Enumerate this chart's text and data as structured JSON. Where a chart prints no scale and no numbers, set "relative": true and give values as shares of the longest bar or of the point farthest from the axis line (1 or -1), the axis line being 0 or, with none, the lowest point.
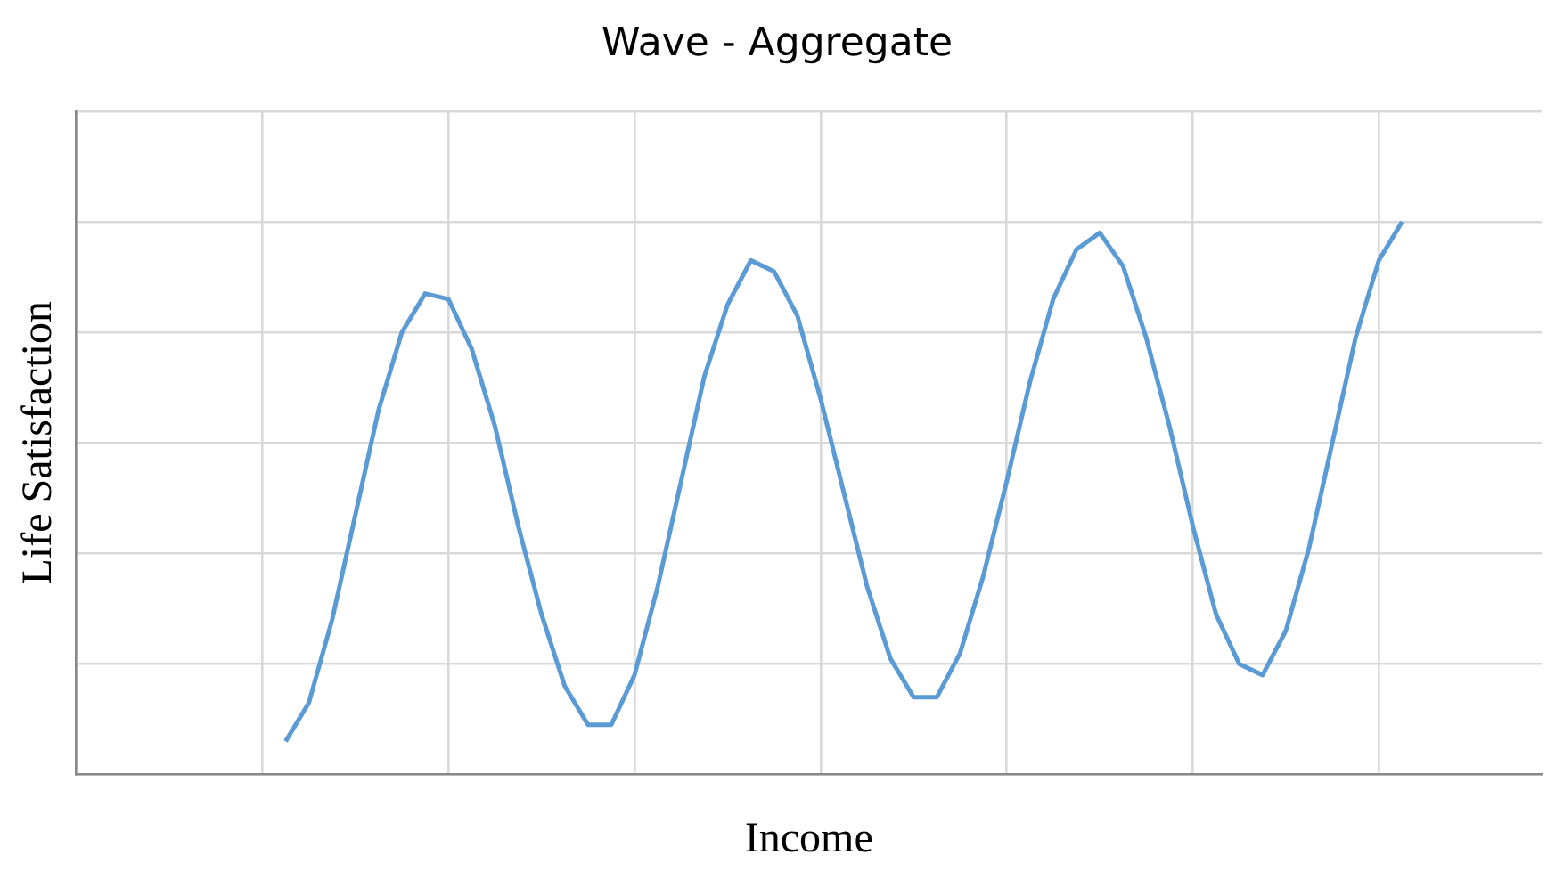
{
  "chart_data": {
    "type": "line",
    "title": "Wave - Aggregate",
    "xlabel": "Income",
    "ylabel": "Life Satisfaction",
    "relative": true,
    "grid": true,
    "legend": false,
    "marker": "none",
    "line_style": "solid",
    "categories": [
      null,
      null,
      null,
      null,
      null,
      null,
      null,
      null,
      null,
      null,
      null,
      null,
      null,
      null,
      null,
      null,
      null,
      null,
      null,
      null,
      null,
      null,
      null,
      null,
      null,
      null,
      null,
      null,
      null,
      null,
      null,
      null,
      null,
      null,
      null,
      null,
      null,
      null,
      null,
      null,
      null,
      null,
      null,
      null,
      null,
      null,
      null,
      null,
      null,
      null,
      null,
      null,
      null,
      null,
      null,
      null,
      null,
      null,
      null,
      null,
      null,
      null,
      null,
      null
    ],
    "series": [
      {
        "color": "#5b9bd5",
        "values": [
          null,
          null,
          null,
          null,
          null,
          null,
          null,
          null,
          null,
          0.06,
          0.13,
          0.28,
          0.47,
          0.66,
          0.8,
          0.87,
          0.86,
          0.77,
          0.63,
          0.45,
          0.29,
          0.16,
          0.09,
          0.09,
          0.18,
          0.34,
          0.53,
          0.72,
          0.85,
          0.93,
          0.91,
          0.83,
          0.68,
          0.51,
          0.34,
          0.21,
          0.14,
          0.14,
          0.22,
          0.36,
          0.53,
          0.71,
          0.86,
          0.95,
          0.98,
          0.92,
          0.79,
          0.63,
          0.45,
          0.29,
          0.2,
          0.18,
          0.26,
          0.41,
          0.6,
          0.79,
          0.93,
          1,
          null,
          null,
          null,
          null,
          null,
          null
        ]
      }
    ]
  }
}
